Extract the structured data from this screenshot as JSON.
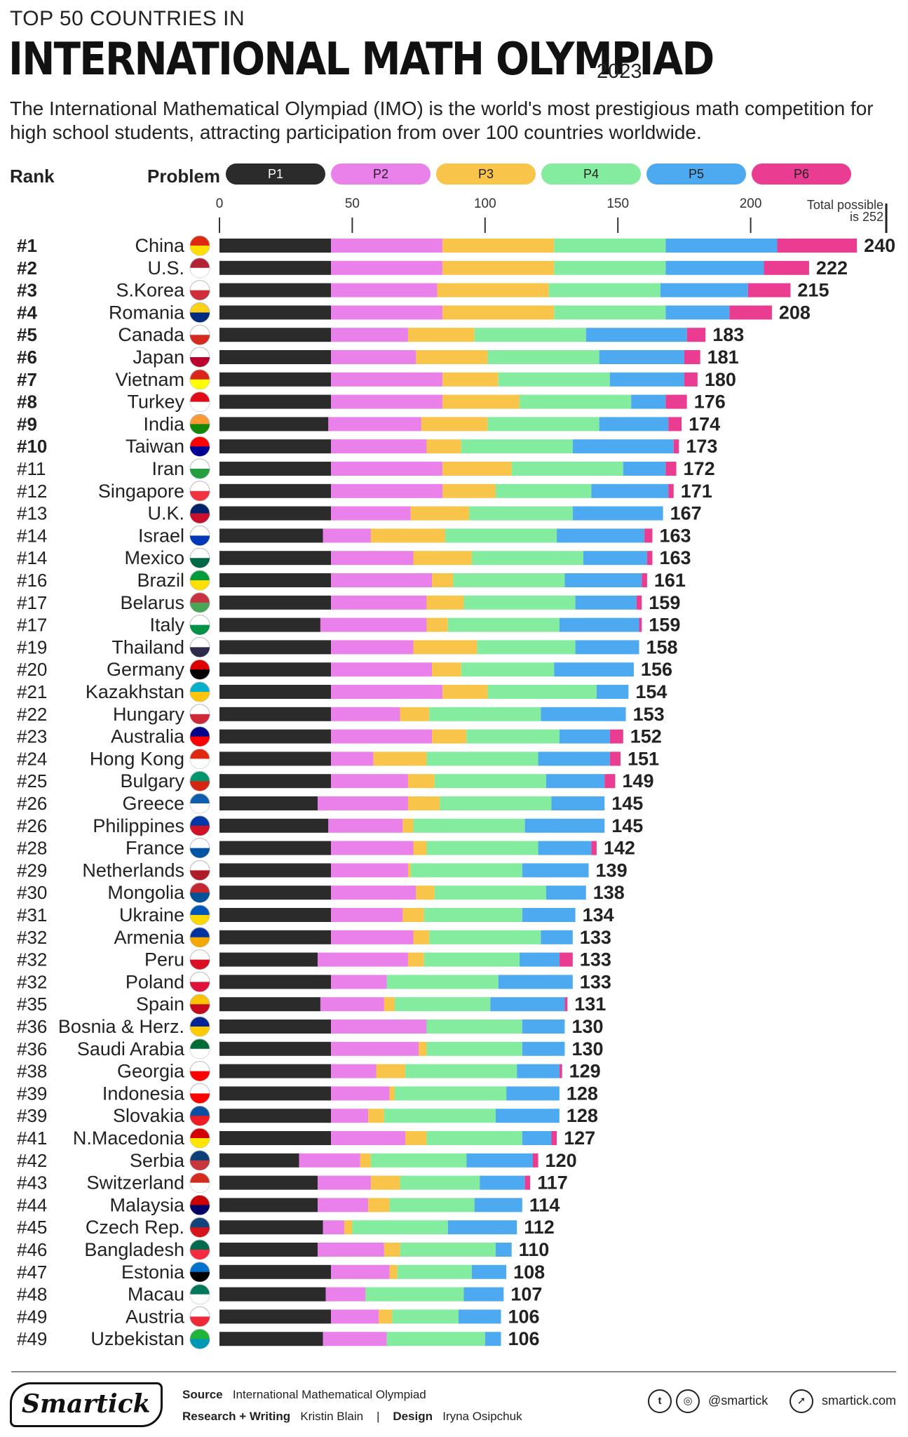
{
  "header": {
    "kicker": "TOP 50 COUNTRIES IN",
    "headline": "INTERNATIONAL MATH OLYMPIAD",
    "year": "2023",
    "subtitle": "The International Mathematical Olympiad (IMO) is the world's most prestigious math competition for high school students, attracting participation from over 100 countries worldwide."
  },
  "legend": {
    "rank_label": "Rank",
    "problem_label": "Problem",
    "items": [
      {
        "label": "P1",
        "color": "#2b2b2b",
        "text_color": "#ffffff"
      },
      {
        "label": "P2",
        "color": "#ea80ea",
        "text_color": "#222222"
      },
      {
        "label": "P3",
        "color": "#f8c54a",
        "text_color": "#222222"
      },
      {
        "label": "P4",
        "color": "#84ec9e",
        "text_color": "#222222"
      },
      {
        "label": "P5",
        "color": "#4eaaf0",
        "text_color": "#222222"
      },
      {
        "label": "P6",
        "color": "#ea3c90",
        "text_color": "#222222"
      }
    ]
  },
  "chart_data": {
    "type": "bar",
    "orientation": "horizontal",
    "stacked": true,
    "title": "Top 50 Countries in International Math Olympiad 2023",
    "xlim": [
      0,
      252
    ],
    "xticks": [
      0,
      50,
      100,
      150,
      200
    ],
    "max_note": "Total possible is 252",
    "series_names": [
      "P1",
      "P2",
      "P3",
      "P4",
      "P5",
      "P6"
    ],
    "rows": [
      {
        "rank": "#1",
        "country": "China",
        "flag": "china-flag",
        "values": [
          42,
          42,
          42,
          42,
          42,
          30
        ],
        "total": 240
      },
      {
        "rank": "#2",
        "country": "U.S.",
        "flag": "us-flag",
        "values": [
          42,
          42,
          42,
          42,
          37,
          17
        ],
        "total": 222
      },
      {
        "rank": "#3",
        "country": "S.Korea",
        "flag": "south-korea-flag",
        "values": [
          42,
          40,
          42,
          42,
          33,
          16
        ],
        "total": 215
      },
      {
        "rank": "#4",
        "country": "Romania",
        "flag": "romania-flag",
        "values": [
          42,
          42,
          42,
          42,
          24,
          16
        ],
        "total": 208
      },
      {
        "rank": "#5",
        "country": "Canada",
        "flag": "canada-flag",
        "values": [
          42,
          29,
          25,
          42,
          38,
          7
        ],
        "total": 183
      },
      {
        "rank": "#6",
        "country": "Japan",
        "flag": "japan-flag",
        "values": [
          42,
          32,
          27,
          42,
          32,
          6
        ],
        "total": 181
      },
      {
        "rank": "#7",
        "country": "Vietnam",
        "flag": "vietnam-flag",
        "values": [
          42,
          42,
          21,
          42,
          28,
          5
        ],
        "total": 180
      },
      {
        "rank": "#8",
        "country": "Turkey",
        "flag": "turkey-flag",
        "values": [
          42,
          42,
          29,
          42,
          13,
          8
        ],
        "total": 176
      },
      {
        "rank": "#9",
        "country": "India",
        "flag": "india-flag",
        "values": [
          41,
          35,
          25,
          42,
          26,
          5
        ],
        "total": 174
      },
      {
        "rank": "#10",
        "country": "Taiwan",
        "flag": "taiwan-flag",
        "values": [
          42,
          36,
          13,
          42,
          38,
          2
        ],
        "total": 173
      },
      {
        "rank": "#11",
        "country": "Iran",
        "flag": "iran-flag",
        "values": [
          42,
          42,
          26,
          42,
          16,
          4
        ],
        "total": 172
      },
      {
        "rank": "#12",
        "country": "Singapore",
        "flag": "singapore-flag",
        "values": [
          42,
          42,
          20,
          36,
          29,
          2
        ],
        "total": 171
      },
      {
        "rank": "#13",
        "country": "U.K.",
        "flag": "uk-flag",
        "values": [
          42,
          30,
          22,
          39,
          34,
          0
        ],
        "total": 167
      },
      {
        "rank": "#14",
        "country": "Israel",
        "flag": "israel-flag",
        "values": [
          39,
          18,
          28,
          42,
          33,
          3
        ],
        "total": 163
      },
      {
        "rank": "#14",
        "country": "Mexico",
        "flag": "mexico-flag",
        "values": [
          42,
          31,
          22,
          42,
          24,
          2
        ],
        "total": 163
      },
      {
        "rank": "#16",
        "country": "Brazil",
        "flag": "brazil-flag",
        "values": [
          42,
          38,
          8,
          42,
          29,
          2
        ],
        "total": 161
      },
      {
        "rank": "#17",
        "country": "Belarus",
        "flag": "belarus-flag",
        "values": [
          42,
          36,
          14,
          42,
          23,
          2
        ],
        "total": 159
      },
      {
        "rank": "#17",
        "country": "Italy",
        "flag": "italy-flag",
        "values": [
          38,
          40,
          8,
          42,
          30,
          1
        ],
        "total": 159
      },
      {
        "rank": "#19",
        "country": "Thailand",
        "flag": "thailand-flag",
        "values": [
          42,
          31,
          24,
          37,
          24,
          0
        ],
        "total": 158
      },
      {
        "rank": "#20",
        "country": "Germany",
        "flag": "germany-flag",
        "values": [
          42,
          38,
          11,
          35,
          30,
          0
        ],
        "total": 156
      },
      {
        "rank": "#21",
        "country": "Kazakhstan",
        "flag": "kazakhstan-flag",
        "values": [
          42,
          42,
          17,
          41,
          12,
          0
        ],
        "total": 154
      },
      {
        "rank": "#22",
        "country": "Hungary",
        "flag": "hungary-flag",
        "values": [
          42,
          26,
          11,
          42,
          32,
          0
        ],
        "total": 153
      },
      {
        "rank": "#23",
        "country": "Australia",
        "flag": "australia-flag",
        "values": [
          42,
          38,
          13,
          35,
          19,
          5
        ],
        "total": 152
      },
      {
        "rank": "#24",
        "country": "Hong Kong",
        "flag": "hong-kong-flag",
        "values": [
          42,
          16,
          20,
          42,
          27,
          4
        ],
        "total": 151
      },
      {
        "rank": "#25",
        "country": "Bulgary",
        "flag": "bulgaria-flag",
        "values": [
          42,
          29,
          10,
          42,
          22,
          4
        ],
        "total": 149
      },
      {
        "rank": "#26",
        "country": "Greece",
        "flag": "greece-flag",
        "values": [
          37,
          34,
          12,
          42,
          20,
          0
        ],
        "total": 145
      },
      {
        "rank": "#26",
        "country": "Philippines",
        "flag": "philippines-flag",
        "values": [
          41,
          28,
          4,
          42,
          30,
          0
        ],
        "total": 145
      },
      {
        "rank": "#28",
        "country": "France",
        "flag": "france-flag",
        "values": [
          42,
          31,
          5,
          42,
          20,
          2
        ],
        "total": 142
      },
      {
        "rank": "#29",
        "country": "Netherlands",
        "flag": "netherlands-flag",
        "values": [
          42,
          29,
          1,
          42,
          25,
          0
        ],
        "total": 139
      },
      {
        "rank": "#30",
        "country": "Mongolia",
        "flag": "mongolia-flag",
        "values": [
          42,
          32,
          7,
          42,
          15,
          0
        ],
        "total": 138
      },
      {
        "rank": "#31",
        "country": "Ukraine",
        "flag": "ukraine-flag",
        "values": [
          42,
          27,
          8,
          37,
          20,
          0
        ],
        "total": 134
      },
      {
        "rank": "#32",
        "country": "Armenia",
        "flag": "armenia-flag",
        "values": [
          42,
          31,
          6,
          42,
          12,
          0
        ],
        "total": 133
      },
      {
        "rank": "#32",
        "country": "Peru",
        "flag": "peru-flag",
        "values": [
          37,
          34,
          6,
          36,
          15,
          5
        ],
        "total": 133
      },
      {
        "rank": "#32",
        "country": "Poland",
        "flag": "poland-flag",
        "values": [
          42,
          21,
          0,
          42,
          28,
          0
        ],
        "total": 133
      },
      {
        "rank": "#35",
        "country": "Spain",
        "flag": "spain-flag",
        "values": [
          38,
          24,
          4,
          36,
          28,
          1
        ],
        "total": 131
      },
      {
        "rank": "#36",
        "country": "Bosnia & Herz.",
        "flag": "bosnia-flag",
        "values": [
          42,
          36,
          0,
          36,
          16,
          0
        ],
        "total": 130
      },
      {
        "rank": "#36",
        "country": "Saudi Arabia",
        "flag": "saudi-arabia-flag",
        "values": [
          42,
          33,
          3,
          36,
          16,
          0
        ],
        "total": 130
      },
      {
        "rank": "#38",
        "country": "Georgia",
        "flag": "georgia-flag",
        "values": [
          42,
          17,
          11,
          42,
          16,
          1
        ],
        "total": 129
      },
      {
        "rank": "#39",
        "country": "Indonesia",
        "flag": "indonesia-flag",
        "values": [
          42,
          22,
          2,
          42,
          20,
          0
        ],
        "total": 128
      },
      {
        "rank": "#39",
        "country": "Slovakia",
        "flag": "slovakia-flag",
        "values": [
          42,
          14,
          6,
          42,
          24,
          0
        ],
        "total": 128
      },
      {
        "rank": "#41",
        "country": "N.Macedonia",
        "flag": "north-macedonia-flag",
        "values": [
          42,
          28,
          8,
          36,
          11,
          2
        ],
        "total": 127
      },
      {
        "rank": "#42",
        "country": "Serbia",
        "flag": "serbia-flag",
        "values": [
          30,
          23,
          4,
          36,
          25,
          2
        ],
        "total": 120
      },
      {
        "rank": "#43",
        "country": "Switzerland",
        "flag": "switzerland-flag",
        "values": [
          37,
          20,
          11,
          30,
          17,
          2
        ],
        "total": 117
      },
      {
        "rank": "#44",
        "country": "Malaysia",
        "flag": "malaysia-flag",
        "values": [
          37,
          19,
          8,
          32,
          18,
          0
        ],
        "total": 114
      },
      {
        "rank": "#45",
        "country": "Czech Rep.",
        "flag": "czech-flag",
        "values": [
          39,
          8,
          3,
          36,
          26,
          0
        ],
        "total": 112
      },
      {
        "rank": "#46",
        "country": "Bangladesh",
        "flag": "bangladesh-flag",
        "values": [
          37,
          25,
          6,
          36,
          6,
          0
        ],
        "total": 110
      },
      {
        "rank": "#47",
        "country": "Estonia",
        "flag": "estonia-flag",
        "values": [
          42,
          22,
          3,
          28,
          13,
          0
        ],
        "total": 108
      },
      {
        "rank": "#48",
        "country": "Macau",
        "flag": "macau-flag",
        "values": [
          40,
          15,
          0,
          37,
          15,
          0
        ],
        "total": 107
      },
      {
        "rank": "#49",
        "country": "Austria",
        "flag": "austria-flag",
        "values": [
          42,
          18,
          5,
          25,
          16,
          0
        ],
        "total": 106
      },
      {
        "rank": "#49",
        "country": "Uzbekistan",
        "flag": "uzbekistan-flag",
        "values": [
          39,
          24,
          0,
          37,
          6,
          0
        ],
        "total": 106
      }
    ]
  },
  "annotations": {
    "total_line1": "Total possible",
    "total_line2": "is 252"
  },
  "footer": {
    "logo": "Smartick",
    "source_label": "Source",
    "source_value": "International Mathematical Olympiad",
    "research_label": "Research + Writing",
    "research_value": "Kristin Blain",
    "separator": "|",
    "design_label": "Design",
    "design_value": "Iryna Osipchuk",
    "handle": "@smartick",
    "website": "smartick.com",
    "icons": [
      "twitter-icon",
      "instagram-icon",
      "cursor-icon"
    ]
  }
}
